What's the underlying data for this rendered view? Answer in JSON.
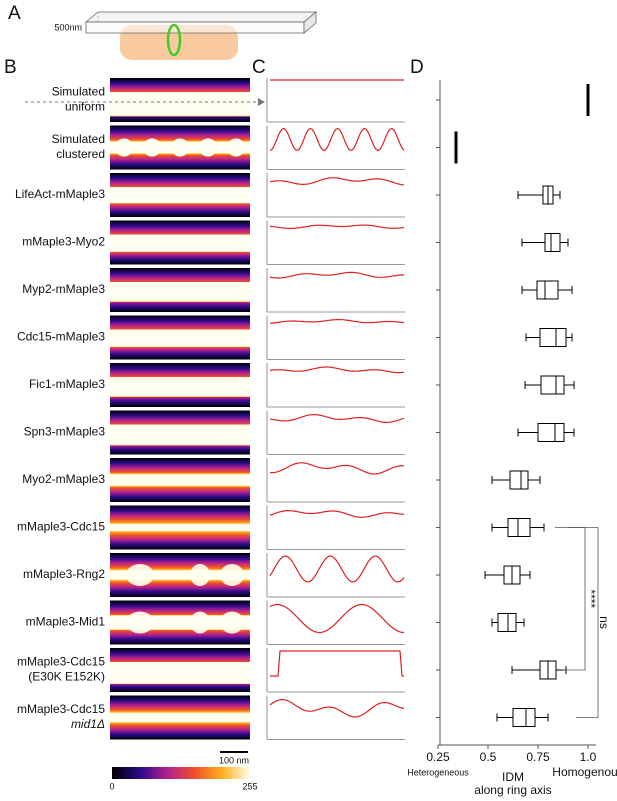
{
  "panels": {
    "a": "A",
    "b": "B",
    "c": "C",
    "d": "D"
  },
  "panel_a": {
    "thickness": "500nm"
  },
  "rows": [
    {
      "lines": [
        "Simulated",
        "uniform"
      ]
    },
    {
      "lines": [
        "Simulated",
        "clustered"
      ]
    },
    {
      "lines": [
        "LifeAct-mMaple3"
      ]
    },
    {
      "lines": [
        "mMaple3-Myo2"
      ]
    },
    {
      "lines": [
        "Myp2-mMaple3"
      ]
    },
    {
      "lines": [
        "Cdc15-mMaple3"
      ]
    },
    {
      "lines": [
        "Fic1-mMaple3"
      ]
    },
    {
      "lines": [
        "Spn3-mMaple3"
      ]
    },
    {
      "lines": [
        "Myo2-mMaple3"
      ]
    },
    {
      "lines": [
        "mMaple3-Cdc15"
      ]
    },
    {
      "lines": [
        "mMaple3-Rng2"
      ]
    },
    {
      "lines": [
        "mMaple3-Mid1"
      ]
    },
    {
      "lines": [
        "mMaple3-Cdc15",
        "(E30K E152K)"
      ]
    },
    {
      "lines": [
        "mMaple3-Cdc15",
        "mid1Δ"
      ]
    }
  ],
  "scale_bar": "100 nm",
  "colorbar": {
    "min": "0",
    "max": "255"
  },
  "chart_data": {
    "type": "box",
    "xlabel": [
      "IDM",
      "along ring axis"
    ],
    "xlim": [
      0.25,
      1.0
    ],
    "xticks": [
      0.25,
      0.5,
      0.75,
      {
        "value": 1,
        "label": "1.0"
      }
    ],
    "left_note": "Heterogeneous",
    "right_note": "Homogenous",
    "color": "#000000",
    "series": [
      {
        "min": 1.0,
        "q1": 1.0,
        "median": 1.0,
        "q3": 1.0,
        "max": 1.0
      },
      {
        "min": 0.34,
        "q1": 0.34,
        "median": 0.34,
        "q3": 0.34,
        "max": 0.34
      },
      {
        "min": 0.65,
        "q1": 0.775,
        "median": 0.8,
        "q3": 0.825,
        "max": 0.86
      },
      {
        "min": 0.67,
        "q1": 0.785,
        "median": 0.815,
        "q3": 0.86,
        "max": 0.9
      },
      {
        "min": 0.67,
        "q1": 0.745,
        "median": 0.785,
        "q3": 0.85,
        "max": 0.92
      },
      {
        "min": 0.69,
        "q1": 0.76,
        "median": 0.84,
        "q3": 0.89,
        "max": 0.92
      },
      {
        "min": 0.685,
        "q1": 0.765,
        "median": 0.84,
        "q3": 0.88,
        "max": 0.93
      },
      {
        "min": 0.65,
        "q1": 0.75,
        "median": 0.835,
        "q3": 0.88,
        "max": 0.93
      },
      {
        "min": 0.52,
        "q1": 0.61,
        "median": 0.665,
        "q3": 0.7,
        "max": 0.76
      },
      {
        "min": 0.52,
        "q1": 0.6,
        "median": 0.65,
        "q3": 0.71,
        "max": 0.78
      },
      {
        "min": 0.485,
        "q1": 0.58,
        "median": 0.62,
        "q3": 0.66,
        "max": 0.71
      },
      {
        "min": 0.52,
        "q1": 0.55,
        "median": 0.6,
        "q3": 0.64,
        "max": 0.68
      },
      {
        "min": 0.62,
        "q1": 0.76,
        "median": 0.8,
        "q3": 0.84,
        "max": 0.89
      },
      {
        "min": 0.545,
        "q1": 0.625,
        "median": 0.69,
        "q3": 0.735,
        "max": 0.8
      }
    ],
    "brackets": [
      {
        "label": "****",
        "from": 9,
        "to": 12
      },
      {
        "label": "ns",
        "from": 9,
        "to": 13
      }
    ]
  }
}
